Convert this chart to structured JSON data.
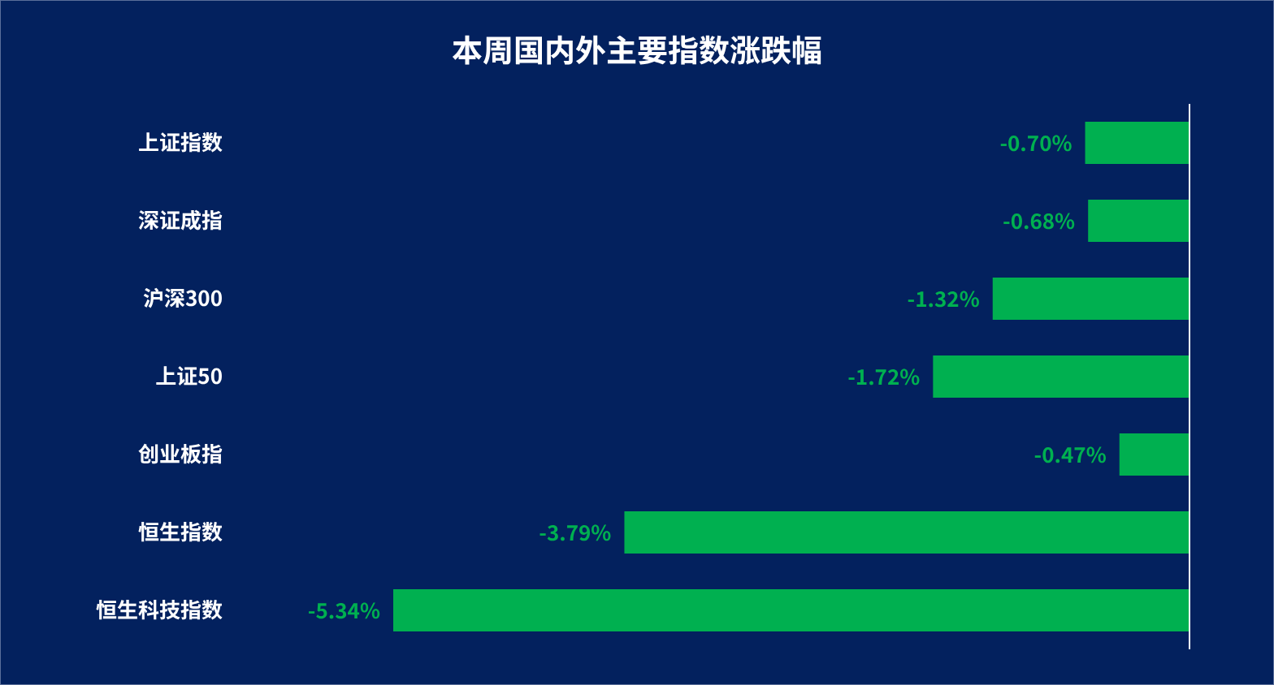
{
  "chart_data": {
    "type": "bar",
    "orientation": "horizontal",
    "title": "本周国内外主要指数涨跌幅",
    "categories": [
      "上证指数",
      "深证成指",
      "沪深300",
      "上证50",
      "创业板指",
      "恒生指数",
      "恒生科技指数"
    ],
    "values": [
      -0.7,
      -0.68,
      -1.32,
      -1.72,
      -0.47,
      -3.79,
      -5.34
    ],
    "value_labels": [
      "-0.70%",
      "-0.68%",
      "-1.32%",
      "-1.72%",
      "-0.47%",
      "-3.79%",
      "-5.34%"
    ],
    "color": "#00b050"
  }
}
